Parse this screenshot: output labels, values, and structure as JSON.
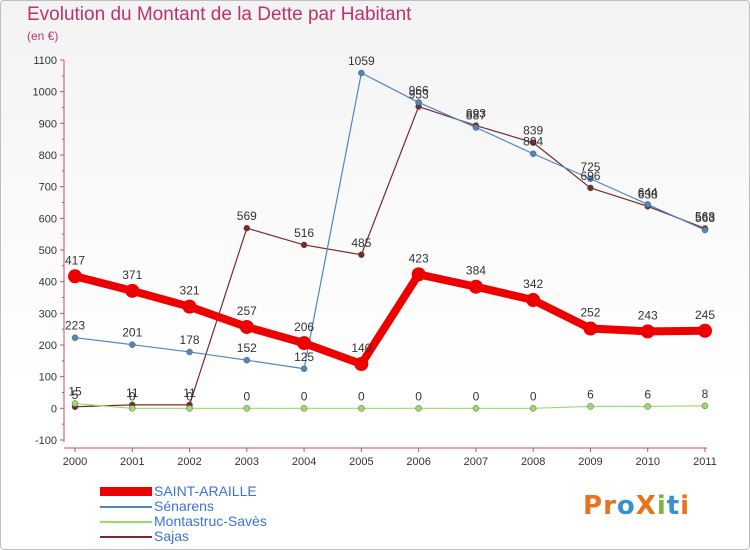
{
  "header": {
    "title": "Evolution du Montant de la Dette par Habitant",
    "unit": "(en €)"
  },
  "logo": {
    "text": "ProXiti",
    "colors": [
      "#e8731f",
      "#e8731f",
      "#3a8fd1",
      "#e8731f",
      "#79b83a",
      "#3a8fd1",
      "#e8731f"
    ]
  },
  "chart_data": {
    "type": "line",
    "title": "Evolution du Montant de la Dette par Habitant",
    "ylabel": "(en €)",
    "xlabel": "",
    "ylim": [
      -100,
      1100
    ],
    "yticks": [
      -100,
      0,
      100,
      200,
      300,
      400,
      500,
      600,
      700,
      800,
      900,
      1000,
      1100
    ],
    "grid": false,
    "legend_position": "bottom-left",
    "categories": [
      "2000",
      "2001",
      "2002",
      "2003",
      "2004",
      "2005",
      "2006",
      "2007",
      "2008",
      "2009",
      "2010",
      "2011"
    ],
    "series": [
      {
        "name": "SAINT-ARAILLE",
        "color": "#ee0000",
        "values": [
          417,
          371,
          321,
          257,
          206,
          140,
          423,
          384,
          342,
          252,
          243,
          245
        ]
      },
      {
        "name": "Sénarens",
        "color": "#4f86c2",
        "values": [
          223,
          201,
          178,
          152,
          125,
          1059,
          966,
          887,
          804,
          725,
          644,
          563
        ]
      },
      {
        "name": "Montastruc-Savès",
        "color": "#99dd66",
        "values": [
          15,
          0,
          0,
          0,
          0,
          0,
          0,
          0,
          0,
          6,
          6,
          8
        ]
      },
      {
        "name": "Sajas",
        "color": "#7a2a2a",
        "values": [
          5,
          11,
          11,
          569,
          516,
          485,
          953,
          893,
          839,
          696,
          638,
          568
        ]
      }
    ]
  }
}
